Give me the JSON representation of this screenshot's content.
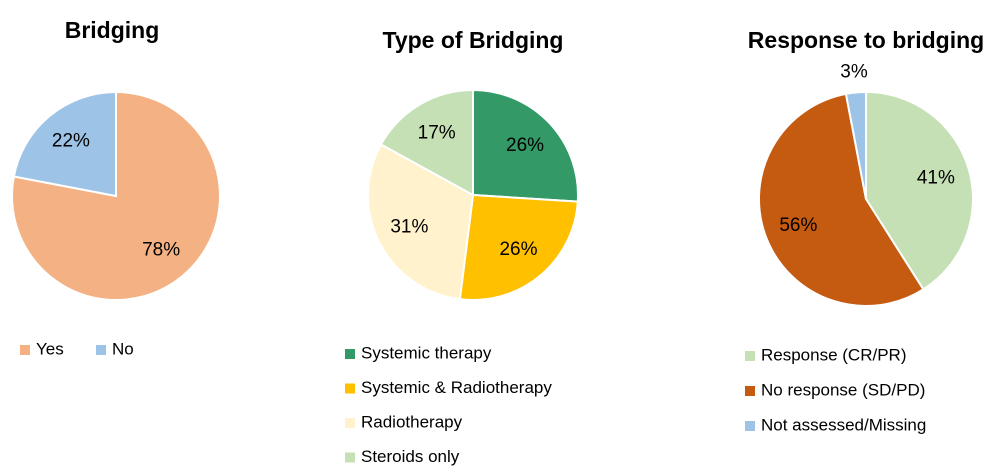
{
  "chart_data": [
    {
      "type": "pie",
      "title": "Bridging",
      "categories": [
        "Yes",
        "No"
      ],
      "values": [
        78,
        22
      ],
      "value_labels": [
        "78%",
        "22%"
      ],
      "colors": [
        "#F4B183",
        "#9DC3E6"
      ]
    },
    {
      "type": "pie",
      "title": "Type of Bridging",
      "categories": [
        "Systemic therapy",
        "Systemic & Radiotherapy",
        "Radiotherapy",
        "Steroids only"
      ],
      "values": [
        26,
        26,
        31,
        17
      ],
      "value_labels": [
        "26%",
        "26%",
        "31%",
        "17%"
      ],
      "colors": [
        "#339966",
        "#FFC000",
        "#FFF2CC",
        "#C5E0B4"
      ]
    },
    {
      "type": "pie",
      "title": "Response to bridging",
      "categories": [
        "Response (CR/PR)",
        "No response (SD/PD)",
        "Not assessed/Missing"
      ],
      "values": [
        41,
        56,
        3
      ],
      "value_labels": [
        "41%",
        "56%",
        "3%"
      ],
      "colors": [
        "#C5E0B4",
        "#C55A11",
        "#9DC3E6"
      ]
    }
  ]
}
